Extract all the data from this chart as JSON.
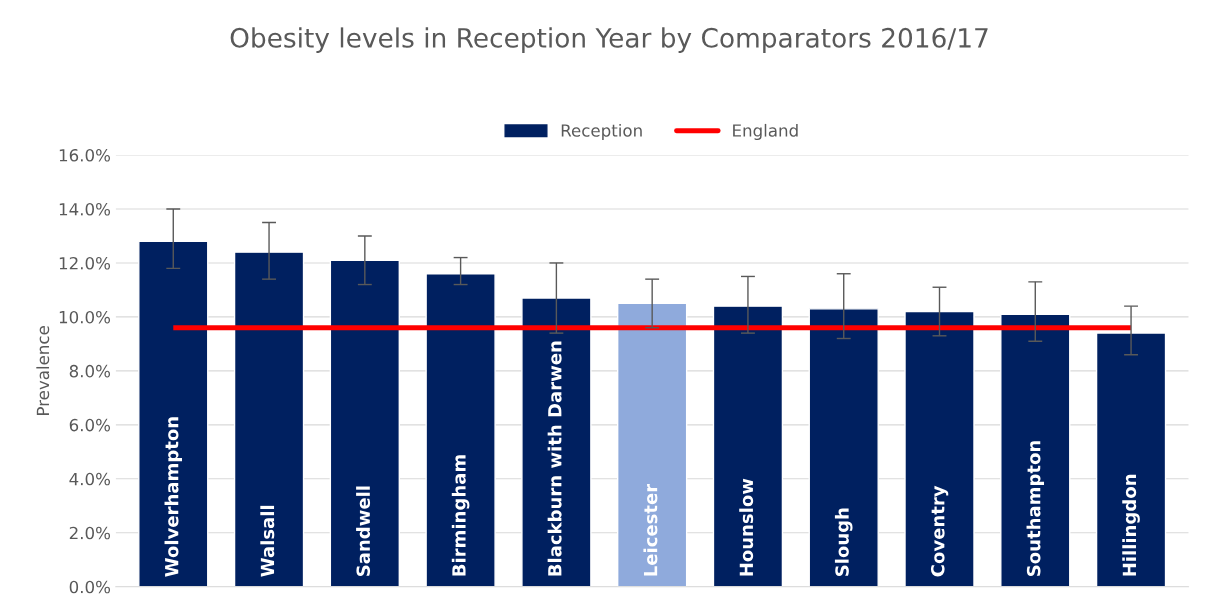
{
  "chart_data": {
    "type": "bar",
    "title": "Obesity levels in Reception Year by Comparators 2016/17",
    "ylabel": "Prevalence",
    "categories": [
      "Wolverhampton",
      "Walsall",
      "Sandwell",
      "Birmingham",
      "Blackburn with Darwen",
      "Leicester",
      "Hounslow",
      "Slough",
      "Coventry",
      "Southampton",
      "Hillingdon"
    ],
    "series": [
      {
        "name": "Reception",
        "color": "#002060",
        "colors": [
          "#002060",
          "#002060",
          "#002060",
          "#002060",
          "#002060",
          "#8faadc",
          "#002060",
          "#002060",
          "#002060",
          "#002060",
          "#002060"
        ],
        "values": [
          12.8,
          12.4,
          12.1,
          11.6,
          10.7,
          10.5,
          10.4,
          10.3,
          10.2,
          10.1,
          9.4
        ],
        "errors": [
          [
            11.8,
            14.0
          ],
          [
            11.4,
            13.5
          ],
          [
            11.2,
            13.0
          ],
          [
            11.2,
            12.2
          ],
          [
            9.4,
            12.0
          ],
          [
            9.6,
            11.4
          ],
          [
            9.4,
            11.5
          ],
          [
            9.2,
            11.6
          ],
          [
            9.3,
            11.1
          ],
          [
            9.1,
            11.3
          ],
          [
            8.6,
            10.4
          ]
        ]
      }
    ],
    "ref_lines": [
      {
        "axis": "y",
        "value": 9.6,
        "label": "England",
        "color": "#ff0000",
        "line_style": "solid"
      }
    ],
    "ylim": [
      0,
      16
    ],
    "yticks": [
      {
        "value": 0,
        "label": "0.0%"
      },
      {
        "value": 2,
        "label": "2.0%"
      },
      {
        "value": 4,
        "label": "4.0%"
      },
      {
        "value": 6,
        "label": "6.0%"
      },
      {
        "value": 8,
        "label": "8.0%"
      },
      {
        "value": 10,
        "label": "10.0%"
      },
      {
        "value": 12,
        "label": "12.0%"
      },
      {
        "value": 14,
        "label": "14.0%"
      },
      {
        "value": 16,
        "label": "16.0%"
      }
    ],
    "grid": "y",
    "legend": "top"
  }
}
